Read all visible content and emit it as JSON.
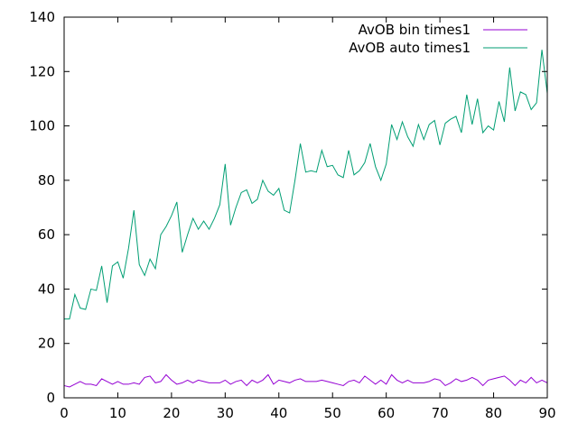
{
  "chart_data": {
    "type": "line",
    "title": "",
    "xlabel": "",
    "ylabel": "",
    "xlim": [
      0,
      90
    ],
    "ylim": [
      0,
      140
    ],
    "xticks": [
      0,
      10,
      20,
      30,
      40,
      50,
      60,
      70,
      80,
      90
    ],
    "yticks": [
      0,
      20,
      40,
      60,
      80,
      100,
      120,
      140
    ],
    "grid": false,
    "legend": "top-right",
    "series": [
      {
        "name": "AvOB bin times1",
        "color": "#9400d3",
        "x": [
          0,
          1,
          2,
          3,
          4,
          5,
          6,
          7,
          8,
          9,
          10,
          11,
          12,
          13,
          14,
          15,
          16,
          17,
          18,
          19,
          20,
          21,
          22,
          23,
          24,
          25,
          26,
          27,
          28,
          29,
          30,
          31,
          32,
          33,
          34,
          35,
          36,
          37,
          38,
          39,
          40,
          41,
          42,
          43,
          44,
          45,
          46,
          47,
          48,
          49,
          50,
          51,
          52,
          53,
          54,
          55,
          56,
          57,
          58,
          59,
          60,
          61,
          62,
          63,
          64,
          65,
          66,
          67,
          68,
          69,
          70,
          71,
          72,
          73,
          74,
          75,
          76,
          77,
          78,
          79,
          80,
          81,
          82,
          83,
          84,
          85,
          86,
          87,
          88,
          89,
          90
        ],
        "values": [
          4.5,
          4,
          5,
          6,
          5,
          5,
          4.5,
          7,
          6,
          5,
          6,
          5,
          5,
          5.5,
          5,
          7.5,
          8,
          5.5,
          6,
          8.5,
          6.5,
          5,
          5.5,
          6.5,
          5.5,
          6.5,
          6,
          5.5,
          5.5,
          5.5,
          6.5,
          5,
          6,
          6.5,
          4.5,
          6.5,
          5.5,
          6.5,
          8.5,
          5,
          6.5,
          6,
          5.5,
          6.5,
          7,
          6,
          6,
          6,
          6.5,
          6,
          5.5,
          5,
          4.5,
          6,
          6.5,
          5.5,
          8,
          6.5,
          5,
          6.5,
          5,
          8.5,
          6.5,
          5.5,
          6.5,
          5.5,
          5.5,
          5.5,
          6,
          7,
          6.5,
          4.5,
          5.5,
          7,
          6,
          6.5,
          7.5,
          6.5,
          4.5,
          6.5,
          7,
          7.5,
          8,
          6.5,
          4.5,
          6.5,
          5.5,
          7.5,
          5.5,
          6.5,
          5.5
        ]
      },
      {
        "name": "AvOB auto times1",
        "color": "#009e73",
        "x": [
          0,
          1,
          2,
          3,
          4,
          5,
          6,
          7,
          8,
          9,
          10,
          11,
          12,
          13,
          14,
          15,
          16,
          17,
          18,
          19,
          20,
          21,
          22,
          23,
          24,
          25,
          26,
          27,
          28,
          29,
          30,
          31,
          32,
          33,
          34,
          35,
          36,
          37,
          38,
          39,
          40,
          41,
          42,
          43,
          44,
          45,
          46,
          47,
          48,
          49,
          50,
          51,
          52,
          53,
          54,
          55,
          56,
          57,
          58,
          59,
          60,
          61,
          62,
          63,
          64,
          65,
          66,
          67,
          68,
          69,
          70,
          71,
          72,
          73,
          74,
          75,
          76,
          77,
          78,
          79,
          80,
          81,
          82,
          83,
          84,
          85,
          86,
          87,
          88,
          89,
          90
        ],
        "values": [
          29,
          29,
          38,
          33,
          32.5,
          40,
          39.5,
          48.5,
          35,
          48.5,
          50,
          44,
          55,
          69,
          49,
          45,
          51,
          47.5,
          60,
          63,
          67,
          72,
          53.5,
          60,
          66,
          62,
          65,
          62,
          66,
          71,
          86,
          63.5,
          70,
          75.5,
          76.5,
          71.5,
          73,
          80,
          76,
          74.5,
          77,
          69,
          68,
          80,
          93.5,
          83,
          83.5,
          83,
          91,
          85,
          85.5,
          82,
          81,
          91,
          82,
          83.5,
          86.5,
          93.5,
          85,
          80,
          86,
          100.5,
          95,
          101.5,
          96,
          92.5,
          100.5,
          95,
          100.5,
          102,
          93,
          101,
          102.5,
          103.5,
          97.5,
          111.5,
          100.5,
          110,
          97.5,
          100,
          98.5,
          109,
          101.5,
          121.5,
          105.5,
          112.5,
          111.5,
          106,
          108.5,
          128,
          112
        ]
      }
    ]
  }
}
